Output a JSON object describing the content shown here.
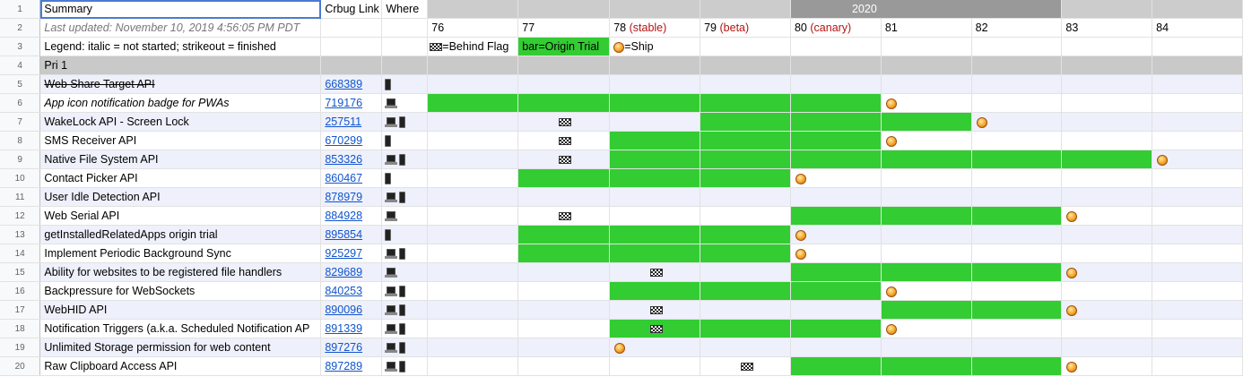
{
  "headers": {
    "summary": "Summary",
    "crbug": "Crbug Link",
    "where": "Where",
    "year": "2020",
    "last_updated": "Last updated: November 10, 2019 4:56:05 PM PDT",
    "legend": "Legend: italic = not started; strikeout = finished",
    "legend_flag": "=Behind Flag",
    "legend_bar": "bar=Origin Trial",
    "legend_ship": "=Ship",
    "section": "Pri 1"
  },
  "versions": [
    {
      "num": "76",
      "tag": ""
    },
    {
      "num": "77",
      "tag": ""
    },
    {
      "num": "78",
      "tag": "(stable)"
    },
    {
      "num": "79",
      "tag": "(beta)"
    },
    {
      "num": "80",
      "tag": "(canary)"
    },
    {
      "num": "81",
      "tag": ""
    },
    {
      "num": "82",
      "tag": ""
    },
    {
      "num": "83",
      "tag": ""
    },
    {
      "num": "84",
      "tag": ""
    }
  ],
  "row_numbers": [
    "1",
    "2",
    "3",
    "4",
    "5",
    "6",
    "7",
    "8",
    "9",
    "10",
    "11",
    "12",
    "13",
    "14",
    "15",
    "16",
    "17",
    "18",
    "19",
    "20"
  ],
  "colors": {
    "bar": "#33cc33",
    "alt_row": "#eef0fb",
    "section": "#c9c9c9",
    "year": "#999999",
    "link": "#1155cc"
  },
  "icons": {
    "flag": "checkered-flag-icon",
    "ship": "ship-icon",
    "laptop": "laptop-icon",
    "phone": "phone-icon"
  },
  "features": [
    {
      "name": "Web Share Target API",
      "style": "strike",
      "bug": "668389",
      "where": [
        "phone"
      ],
      "bar": [],
      "flag": null,
      "ship": null
    },
    {
      "name": "App icon notification badge for PWAs",
      "style": "italic",
      "bug": "719176",
      "where": [
        "laptop"
      ],
      "bar": [
        0,
        1,
        2,
        3,
        4
      ],
      "flag": null,
      "ship": 5
    },
    {
      "name": "WakeLock API - Screen Lock",
      "style": "",
      "bug": "257511",
      "where": [
        "laptop",
        "phone"
      ],
      "bar": [
        3,
        4,
        5
      ],
      "flag": 1,
      "ship": 6
    },
    {
      "name": "SMS Receiver API",
      "style": "",
      "bug": "670299",
      "where": [
        "phone"
      ],
      "bar": [
        2,
        3,
        4
      ],
      "flag": 1,
      "ship": 5
    },
    {
      "name": "Native File System API",
      "style": "",
      "bug": "853326",
      "where": [
        "laptop",
        "phone"
      ],
      "bar": [
        2,
        3,
        4,
        5,
        6,
        7
      ],
      "flag": 1,
      "ship": 8
    },
    {
      "name": "Contact Picker API",
      "style": "",
      "bug": "860467",
      "where": [
        "phone"
      ],
      "bar": [
        1,
        2,
        3
      ],
      "flag": null,
      "ship": 4
    },
    {
      "name": "User Idle Detection API",
      "style": "",
      "bug": "878979",
      "where": [
        "laptop",
        "phone"
      ],
      "bar": [],
      "flag": null,
      "ship": null
    },
    {
      "name": "Web Serial API",
      "style": "",
      "bug": "884928",
      "where": [
        "laptop"
      ],
      "bar": [
        4,
        5,
        6
      ],
      "flag": 1,
      "ship": 7
    },
    {
      "name": "getInstalledRelatedApps origin trial",
      "style": "",
      "bug": "895854",
      "where": [
        "phone"
      ],
      "bar": [
        1,
        2,
        3
      ],
      "flag": null,
      "ship": 4
    },
    {
      "name": "Implement Periodic Background Sync",
      "style": "",
      "bug": "925297",
      "where": [
        "laptop",
        "phone"
      ],
      "bar": [
        1,
        2,
        3
      ],
      "flag": null,
      "ship": 4
    },
    {
      "name": "Ability for websites to be registered file handlers",
      "style": "",
      "bug": "829689",
      "where": [
        "laptop"
      ],
      "bar": [
        4,
        5,
        6
      ],
      "flag": 2,
      "ship": 7
    },
    {
      "name": "Backpressure for WebSockets",
      "style": "",
      "bug": "840253",
      "where": [
        "laptop",
        "phone"
      ],
      "bar": [
        2,
        3,
        4
      ],
      "flag": null,
      "ship": 5
    },
    {
      "name": "WebHID API",
      "style": "",
      "bug": "890096",
      "where": [
        "laptop",
        "phone"
      ],
      "bar": [
        5,
        6
      ],
      "flag": 2,
      "ship": 7
    },
    {
      "name": "Notification Triggers (a.k.a. Scheduled Notification AP",
      "style": "",
      "bug": "891339",
      "where": [
        "laptop",
        "phone"
      ],
      "bar": [
        2,
        3,
        4
      ],
      "flag": 2,
      "ship": 5
    },
    {
      "name": "Unlimited Storage permission for web content",
      "style": "",
      "bug": "897276",
      "where": [
        "laptop",
        "phone"
      ],
      "bar": [],
      "flag": null,
      "ship": 2
    },
    {
      "name": "Raw Clipboard Access API",
      "style": "",
      "bug": "897289",
      "where": [
        "laptop",
        "phone"
      ],
      "bar": [
        4,
        5,
        6
      ],
      "flag": 3,
      "ship": 7
    }
  ]
}
